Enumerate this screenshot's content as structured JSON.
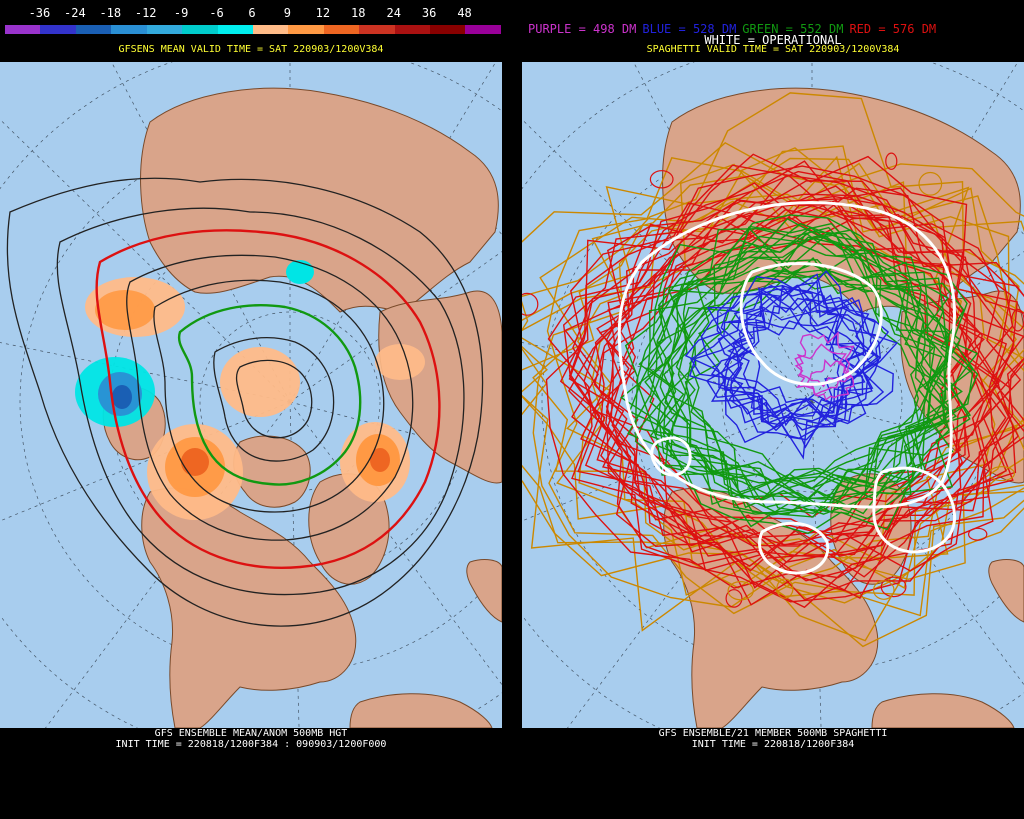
{
  "left": {
    "scale_ticks": [
      "-36",
      "-24",
      "-18",
      "-12",
      "-9",
      "-6",
      "6",
      "9",
      "12",
      "18",
      "24",
      "36",
      "48"
    ],
    "scale_colors": [
      "#9933cc",
      "#3333cc",
      "#1a5fb4",
      "#2a8fd4",
      "#33aadd",
      "#00cccc",
      "#00eeee",
      "#ffbb88",
      "#ff9944",
      "#ee6622",
      "#cc3322",
      "#aa1111",
      "#880000",
      "#990099"
    ],
    "valid_time": "GFSENS MEAN VALID TIME = SAT 220903/1200V384",
    "footer_line1": "GFS ENSEMBLE MEAN/ANOM 500MB HGT",
    "footer_line2": "INIT TIME = 220818/1200F384 : 090903/1200F000"
  },
  "right": {
    "legend": [
      {
        "text": "PURPLE = 498 DM",
        "color": "#cc33cc"
      },
      {
        "text": "BLUE = 528 DM",
        "color": "#2222dd"
      },
      {
        "text": "GREEN = 552 DM",
        "color": "#119911"
      },
      {
        "text": "RED = 576 DM",
        "color": "#dd1111"
      }
    ],
    "white_label": "WHITE = OPERATIONAL",
    "valid_time": "SPAGHETTI VALID TIME = SAT 220903/1200V384",
    "footer_line1": "GFS ENSEMBLE/21 MEMBER 500MB SPAGHETTI",
    "footer_line2": "INIT TIME = 220818/1200F384"
  },
  "colors": {
    "ocean": "#a8cdee",
    "land": "#d9a48a",
    "border": "#7a4a2a",
    "grid": "#445566"
  }
}
